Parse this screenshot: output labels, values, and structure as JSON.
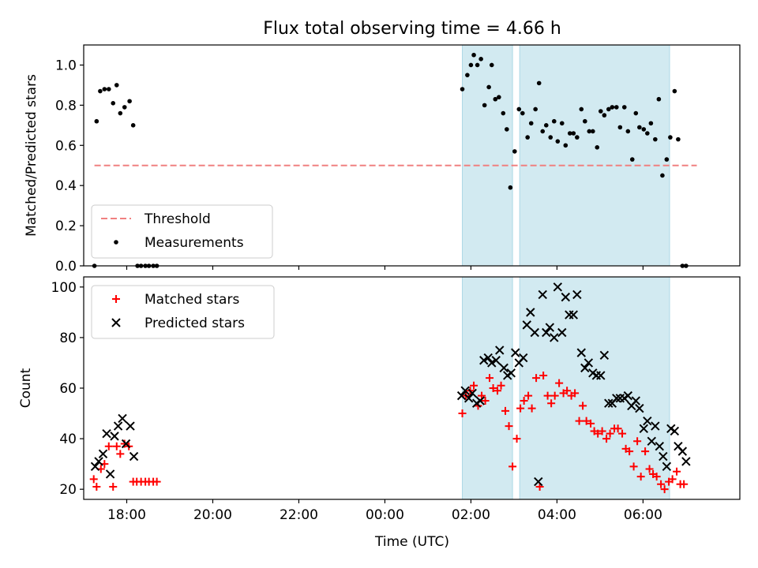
{
  "title": "Flux total observing time = 4.66 h",
  "xlabel": "Time (UTC)",
  "x_ticks": [
    "18:00",
    "20:00",
    "22:00",
    "00:00",
    "02:00",
    "04:00",
    "06:00"
  ],
  "colors": {
    "shade": "#add8e6",
    "threshold": "#f08080",
    "matched": "#ff0000",
    "predicted": "#000000",
    "measurements": "#000000"
  },
  "chart_data": [
    {
      "type": "scatter",
      "panel": "top",
      "ylabel": "Matched/Predicted stars",
      "xlim": [
        "17:00",
        "08:15"
      ],
      "ylim": [
        0,
        1.1
      ],
      "y_ticks": [
        "0.0",
        "0.2",
        "0.4",
        "0.6",
        "0.8",
        "1.0"
      ],
      "shaded_intervals": [
        [
          "01:48",
          "02:58"
        ],
        [
          "03:08",
          "06:37"
        ]
      ],
      "threshold": {
        "name": "Threshold",
        "value": 0.5,
        "x_range": [
          "17:15",
          "07:15"
        ]
      },
      "legend": {
        "placement": "lower-left",
        "entries": [
          "Threshold",
          "Measurements"
        ]
      },
      "series": [
        {
          "name": "Measurements",
          "marker": "dot",
          "points": [
            [
              "17:15",
              0.0
            ],
            [
              "17:18",
              0.72
            ],
            [
              "17:23",
              0.87
            ],
            [
              "17:29",
              0.88
            ],
            [
              "17:35",
              0.88
            ],
            [
              "17:41",
              0.81
            ],
            [
              "17:46",
              0.9
            ],
            [
              "17:51",
              0.76
            ],
            [
              "17:57",
              0.79
            ],
            [
              "18:04",
              0.82
            ],
            [
              "18:09",
              0.7
            ],
            [
              "18:15",
              0.0
            ],
            [
              "18:20",
              0.0
            ],
            [
              "18:26",
              0.0
            ],
            [
              "18:31",
              0.0
            ],
            [
              "18:37",
              0.0
            ],
            [
              "18:42",
              0.0
            ],
            [
              "01:48",
              0.88
            ],
            [
              "01:55",
              0.95
            ],
            [
              "02:00",
              1.0
            ],
            [
              "02:04",
              1.05
            ],
            [
              "02:09",
              1.0
            ],
            [
              "02:14",
              1.03
            ],
            [
              "02:19",
              0.8
            ],
            [
              "02:25",
              0.89
            ],
            [
              "02:29",
              1.0
            ],
            [
              "02:34",
              0.83
            ],
            [
              "02:39",
              0.84
            ],
            [
              "02:45",
              0.76
            ],
            [
              "02:50",
              0.68
            ],
            [
              "02:55",
              0.39
            ],
            [
              "03:01",
              0.57
            ],
            [
              "03:07",
              0.78
            ],
            [
              "03:12",
              0.76
            ],
            [
              "03:19",
              0.64
            ],
            [
              "03:24",
              0.71
            ],
            [
              "03:30",
              0.78
            ],
            [
              "03:35",
              0.91
            ],
            [
              "03:40",
              0.67
            ],
            [
              "03:45",
              0.7
            ],
            [
              "03:51",
              0.64
            ],
            [
              "03:56",
              0.72
            ],
            [
              "04:01",
              0.62
            ],
            [
              "04:07",
              0.71
            ],
            [
              "04:12",
              0.6
            ],
            [
              "04:18",
              0.66
            ],
            [
              "04:23",
              0.66
            ],
            [
              "04:28",
              0.64
            ],
            [
              "04:34",
              0.78
            ],
            [
              "04:39",
              0.72
            ],
            [
              "04:45",
              0.67
            ],
            [
              "04:50",
              0.67
            ],
            [
              "04:56",
              0.59
            ],
            [
              "05:01",
              0.77
            ],
            [
              "05:06",
              0.75
            ],
            [
              "05:12",
              0.78
            ],
            [
              "05:17",
              0.79
            ],
            [
              "05:23",
              0.79
            ],
            [
              "05:28",
              0.69
            ],
            [
              "05:34",
              0.79
            ],
            [
              "05:39",
              0.67
            ],
            [
              "05:45",
              0.53
            ],
            [
              "05:50",
              0.76
            ],
            [
              "05:55",
              0.69
            ],
            [
              "06:01",
              0.68
            ],
            [
              "06:06",
              0.66
            ],
            [
              "06:11",
              0.71
            ],
            [
              "06:17",
              0.63
            ],
            [
              "06:22",
              0.83
            ],
            [
              "06:27",
              0.45
            ],
            [
              "06:33",
              0.53
            ],
            [
              "06:38",
              0.64
            ],
            [
              "06:44",
              0.87
            ],
            [
              "06:49",
              0.63
            ],
            [
              "06:55",
              0.0
            ],
            [
              "07:00",
              0.0
            ]
          ]
        }
      ]
    },
    {
      "type": "scatter",
      "panel": "bottom",
      "ylabel": "Count",
      "xlim": [
        "17:00",
        "08:15"
      ],
      "ylim": [
        16,
        104
      ],
      "y_ticks": [
        "20",
        "40",
        "60",
        "80",
        "100"
      ],
      "shaded_intervals": [
        [
          "01:48",
          "02:58"
        ],
        [
          "03:08",
          "06:37"
        ]
      ],
      "legend": {
        "placement": "upper-left",
        "entries": [
          "Matched stars",
          "Predicted stars"
        ]
      },
      "series": [
        {
          "name": "Matched stars",
          "marker": "plus",
          "points": [
            [
              "17:14",
              24
            ],
            [
              "17:18",
              21
            ],
            [
              "17:24",
              28
            ],
            [
              "17:29",
              30
            ],
            [
              "17:35",
              37
            ],
            [
              "17:41",
              21
            ],
            [
              "17:46",
              37
            ],
            [
              "17:51",
              34
            ],
            [
              "17:57",
              38
            ],
            [
              "18:03",
              37
            ],
            [
              "18:09",
              23
            ],
            [
              "18:14",
              23
            ],
            [
              "18:20",
              23
            ],
            [
              "18:26",
              23
            ],
            [
              "18:31",
              23
            ],
            [
              "18:37",
              23
            ],
            [
              "18:42",
              23
            ],
            [
              "01:48",
              50
            ],
            [
              "01:53",
              57
            ],
            [
              "01:59",
              59
            ],
            [
              "02:04",
              61
            ],
            [
              "02:10",
              53
            ],
            [
              "02:15",
              57
            ],
            [
              "02:20",
              55
            ],
            [
              "02:26",
              64
            ],
            [
              "02:31",
              60
            ],
            [
              "02:37",
              59
            ],
            [
              "02:42",
              61
            ],
            [
              "02:48",
              51
            ],
            [
              "02:53",
              45
            ],
            [
              "02:58",
              29
            ],
            [
              "03:04",
              40
            ],
            [
              "03:09",
              52
            ],
            [
              "03:14",
              55
            ],
            [
              "03:20",
              57
            ],
            [
              "03:25",
              52
            ],
            [
              "03:31",
              64
            ],
            [
              "03:36",
              21
            ],
            [
              "03:41",
              65
            ],
            [
              "03:47",
              57
            ],
            [
              "03:52",
              54
            ],
            [
              "03:57",
              57
            ],
            [
              "04:03",
              62
            ],
            [
              "04:09",
              58
            ],
            [
              "04:14",
              59
            ],
            [
              "04:20",
              57
            ],
            [
              "04:25",
              58
            ],
            [
              "04:31",
              47
            ],
            [
              "04:36",
              53
            ],
            [
              "04:41",
              47
            ],
            [
              "04:47",
              46
            ],
            [
              "04:52",
              43
            ],
            [
              "04:57",
              42
            ],
            [
              "05:03",
              43
            ],
            [
              "05:09",
              40
            ],
            [
              "05:14",
              42
            ],
            [
              "05:20",
              44
            ],
            [
              "05:25",
              44
            ],
            [
              "05:31",
              42
            ],
            [
              "05:36",
              36
            ],
            [
              "05:41",
              35
            ],
            [
              "05:47",
              29
            ],
            [
              "05:52",
              39
            ],
            [
              "05:57",
              25
            ],
            [
              "06:03",
              35
            ],
            [
              "06:09",
              28
            ],
            [
              "06:14",
              26
            ],
            [
              "06:19",
              25
            ],
            [
              "06:25",
              22
            ],
            [
              "06:30",
              20
            ],
            [
              "06:36",
              23
            ],
            [
              "06:41",
              24
            ],
            [
              "06:47",
              27
            ],
            [
              "06:52",
              22
            ],
            [
              "06:57",
              22
            ]
          ]
        },
        {
          "name": "Predicted stars",
          "marker": "x",
          "points": [
            [
              "17:16",
              29
            ],
            [
              "17:21",
              31
            ],
            [
              "17:27",
              34
            ],
            [
              "17:32",
              42
            ],
            [
              "17:37",
              26
            ],
            [
              "17:43",
              41
            ],
            [
              "17:48",
              45
            ],
            [
              "17:54",
              48
            ],
            [
              "17:59",
              38
            ],
            [
              "18:05",
              45
            ],
            [
              "18:10",
              33
            ],
            [
              "01:47",
              57
            ],
            [
              "01:52",
              59
            ],
            [
              "01:57",
              56
            ],
            [
              "02:02",
              58
            ],
            [
              "02:08",
              54
            ],
            [
              "02:13",
              55
            ],
            [
              "02:18",
              71
            ],
            [
              "02:24",
              72
            ],
            [
              "02:29",
              70
            ],
            [
              "02:35",
              71
            ],
            [
              "02:40",
              75
            ],
            [
              "02:46",
              68
            ],
            [
              "02:51",
              65
            ],
            [
              "02:56",
              66
            ],
            [
              "03:02",
              74
            ],
            [
              "03:07",
              70
            ],
            [
              "03:13",
              72
            ],
            [
              "03:18",
              85
            ],
            [
              "03:23",
              90
            ],
            [
              "03:29",
              82
            ],
            [
              "03:34",
              23
            ],
            [
              "03:40",
              97
            ],
            [
              "03:45",
              82
            ],
            [
              "03:50",
              84
            ],
            [
              "03:56",
              80
            ],
            [
              "04:01",
              100
            ],
            [
              "04:07",
              82
            ],
            [
              "04:12",
              96
            ],
            [
              "04:17",
              89
            ],
            [
              "04:23",
              89
            ],
            [
              "04:28",
              97
            ],
            [
              "04:34",
              74
            ],
            [
              "04:39",
              68
            ],
            [
              "04:44",
              70
            ],
            [
              "04:50",
              66
            ],
            [
              "04:55",
              65
            ],
            [
              "05:01",
              65
            ],
            [
              "05:06",
              73
            ],
            [
              "05:12",
              54
            ],
            [
              "05:17",
              54
            ],
            [
              "05:23",
              56
            ],
            [
              "05:28",
              56
            ],
            [
              "05:34",
              56
            ],
            [
              "05:39",
              57
            ],
            [
              "05:44",
              53
            ],
            [
              "05:50",
              55
            ],
            [
              "05:55",
              52
            ],
            [
              "06:01",
              44
            ],
            [
              "06:06",
              47
            ],
            [
              "06:12",
              39
            ],
            [
              "06:17",
              45
            ],
            [
              "06:23",
              37
            ],
            [
              "06:28",
              33
            ],
            [
              "06:33",
              29
            ],
            [
              "06:39",
              44
            ],
            [
              "06:44",
              43
            ],
            [
              "06:49",
              37
            ],
            [
              "06:55",
              35
            ],
            [
              "07:00",
              31
            ]
          ]
        }
      ]
    }
  ]
}
